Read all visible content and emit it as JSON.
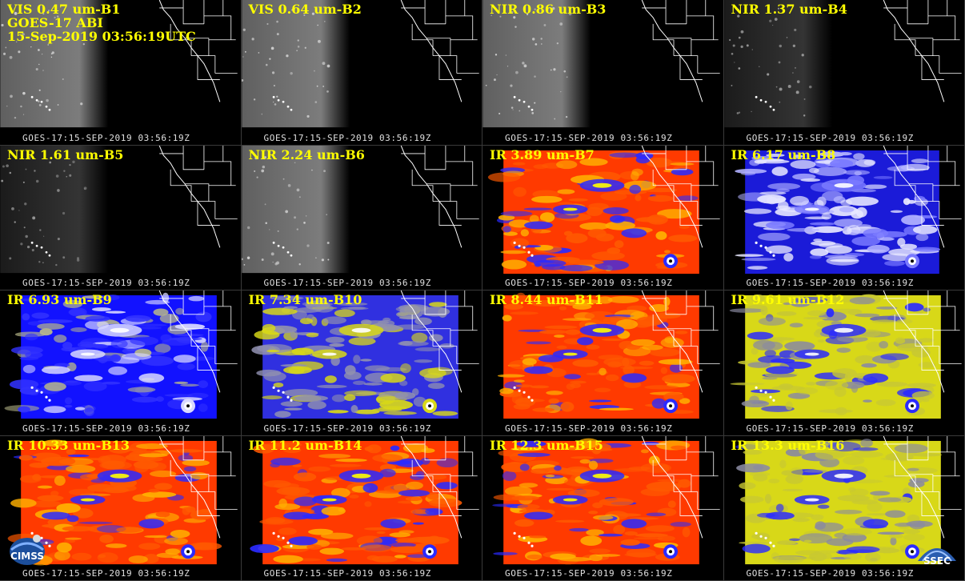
{
  "header": {
    "satellite": "GOES-17 ABI",
    "datetime": "15-Sep-2019 03:56:19UTC"
  },
  "timestamp": "GOES-17:15-SEP-2019 03:56:19Z",
  "panels": [
    {
      "label": "VIS 0.47 um-B1",
      "style": "vis"
    },
    {
      "label": "VIS 0.64 um-B2",
      "style": "vis"
    },
    {
      "label": "NIR 0.86 um-B3",
      "style": "vis"
    },
    {
      "label": "NIR 1.37 um-B4",
      "style": "dark"
    },
    {
      "label": "NIR 1.61 um-B5",
      "style": "dark"
    },
    {
      "label": "NIR 2.24 um-B6",
      "style": "vis"
    },
    {
      "label": "IR 3.89 um-B7",
      "style": "ir-red"
    },
    {
      "label": "IR 6.17 um-B8",
      "style": "wv-blue"
    },
    {
      "label": "IR 6.93 um-B9",
      "style": "wv-blue2"
    },
    {
      "label": "IR 7.34 um-B10",
      "style": "wv-yellow"
    },
    {
      "label": "IR 8.44 um-B11",
      "style": "ir-red"
    },
    {
      "label": "IR 9.61 um-B12",
      "style": "ir-yellow"
    },
    {
      "label": "IR 10.33 um-B13",
      "style": "ir-red"
    },
    {
      "label": "IR 11.2 um-B14",
      "style": "ir-red"
    },
    {
      "label": "IR 12.3 um-B15",
      "style": "ir-red"
    },
    {
      "label": "IR 13.3 um-B16",
      "style": "ir-yellow"
    }
  ],
  "logos": {
    "left": "CIMSS",
    "right": "SSEC"
  },
  "colors": {
    "label": "#ffff00",
    "timestamp": "#e0e0e0",
    "background": "#000000"
  }
}
